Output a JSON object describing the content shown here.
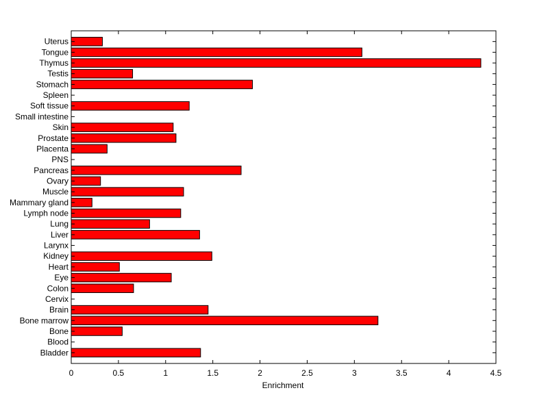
{
  "chart_data": {
    "type": "bar",
    "orientation": "horizontal",
    "xlabel": "Enrichment",
    "xlim": [
      0,
      4.5
    ],
    "xticks": [
      "0",
      "0.5",
      "1",
      "1.5",
      "2",
      "2.5",
      "3",
      "3.5",
      "4",
      "4.5"
    ],
    "grid": false,
    "categories": [
      "Bladder",
      "Blood",
      "Bone",
      "Bone marrow",
      "Brain",
      "Cervix",
      "Colon",
      "Eye",
      "Heart",
      "Kidney",
      "Larynx",
      "Liver",
      "Lung",
      "Lymph node",
      "Mammary gland",
      "Muscle",
      "Ovary",
      "Pancreas",
      "PNS",
      "Placenta",
      "Prostate",
      "Skin",
      "Small intestine",
      "Soft tissue",
      "Spleen",
      "Stomach",
      "Testis",
      "Thymus",
      "Tongue",
      "Uterus"
    ],
    "values": [
      1.37,
      0,
      0.54,
      3.25,
      1.45,
      0,
      0.66,
      1.06,
      0.51,
      1.49,
      0,
      1.36,
      0.83,
      1.16,
      0.22,
      1.19,
      0.31,
      1.8,
      0,
      0.38,
      1.11,
      1.08,
      0,
      1.25,
      0,
      1.92,
      0.65,
      4.34,
      3.08,
      0.33
    ],
    "bar_color": "#ff0000",
    "edge_color": "#000000"
  }
}
